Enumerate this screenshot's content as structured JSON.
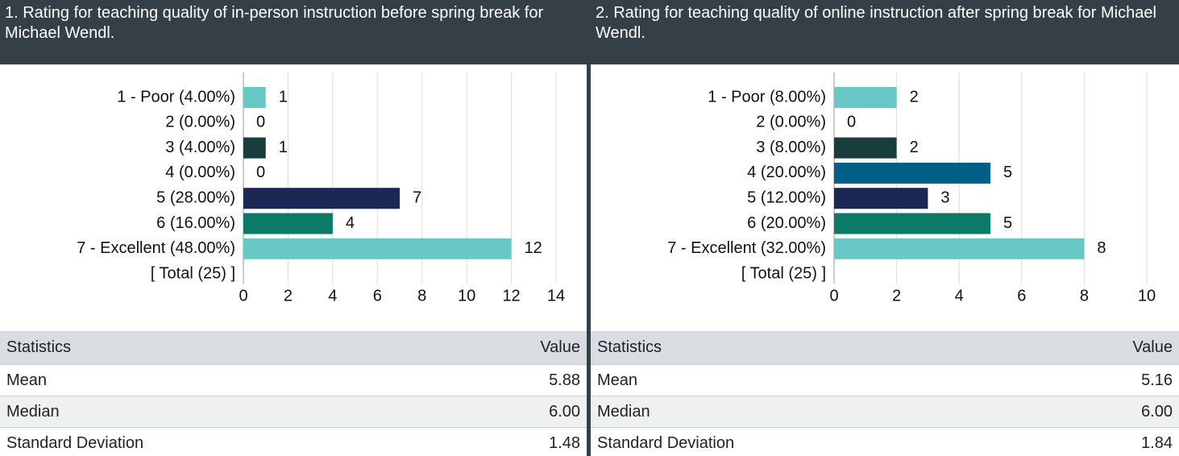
{
  "chart_data": [
    {
      "type": "bar",
      "orientation": "horizontal",
      "title": "1. Rating for teaching quality of in-person instruction before spring break for Michael Wendl.",
      "categories": [
        "1 - Poor (4.00%)",
        "2 (0.00%)",
        "3 (4.00%)",
        "4 (0.00%)",
        "5 (28.00%)",
        "6 (16.00%)",
        "7 - Excellent (48.00%)",
        "[ Total (25) ]"
      ],
      "values": [
        1,
        0,
        1,
        0,
        7,
        4,
        12,
        null
      ],
      "colors": [
        "#68c8c6",
        "#2f8f9d",
        "#193d3a",
        "#005f87",
        "#1b2856",
        "#0b7a66",
        "#68c8c6",
        null
      ],
      "xlim": [
        0,
        14
      ],
      "xticks": [
        0,
        2,
        4,
        6,
        8,
        10,
        12,
        14
      ],
      "grid": true
    },
    {
      "type": "bar",
      "orientation": "horizontal",
      "title": "2. Rating for teaching quality of online instruction after spring break for Michael Wendl.",
      "categories": [
        "1 - Poor (8.00%)",
        "2 (0.00%)",
        "3 (8.00%)",
        "4 (20.00%)",
        "5 (12.00%)",
        "6 (20.00%)",
        "7 - Excellent (32.00%)",
        "[ Total (25) ]"
      ],
      "values": [
        2,
        0,
        2,
        5,
        3,
        5,
        8,
        null
      ],
      "colors": [
        "#68c8c6",
        "#2f8f9d",
        "#193d3a",
        "#005f87",
        "#1b2856",
        "#0b7a66",
        "#68c8c6",
        null
      ],
      "xlim": [
        0,
        10
      ],
      "xticks": [
        0,
        2,
        4,
        6,
        8,
        10
      ],
      "grid": true
    }
  ],
  "tables": [
    {
      "header": [
        "Statistics",
        "Value"
      ],
      "rows": [
        [
          "Mean",
          "5.88"
        ],
        [
          "Median",
          "6.00"
        ],
        [
          "Standard Deviation",
          "1.48"
        ]
      ]
    },
    {
      "header": [
        "Statistics",
        "Value"
      ],
      "rows": [
        [
          "Mean",
          "5.16"
        ],
        [
          "Median",
          "6.00"
        ],
        [
          "Standard Deviation",
          "1.84"
        ]
      ]
    }
  ]
}
